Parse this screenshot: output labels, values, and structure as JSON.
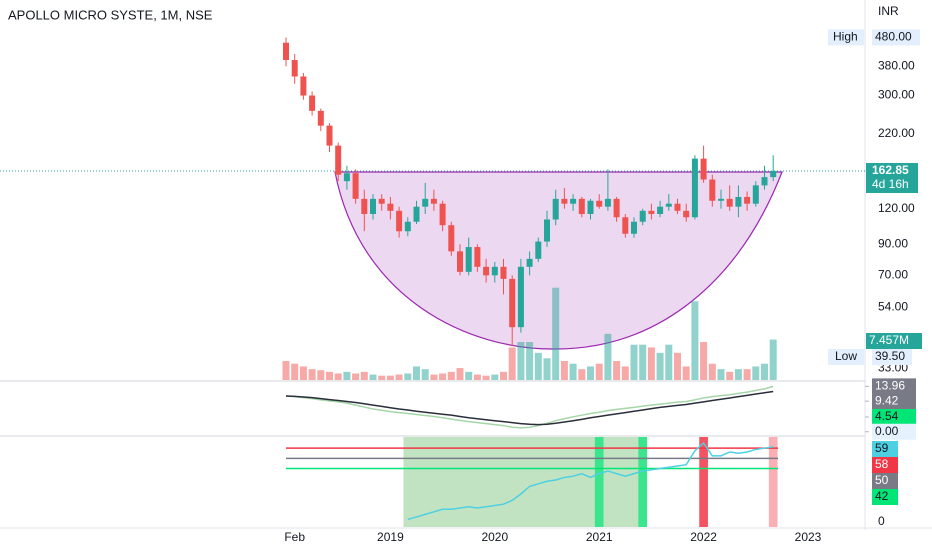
{
  "chart_data": {
    "type": "candlestick",
    "title": "APOLLO MICRO SYSTE, 1M, NSE",
    "currency": "INR",
    "x": [
      "2018-01",
      "2018-02",
      "2018-03",
      "2018-04",
      "2018-05",
      "2018-06",
      "2018-07",
      "2018-08",
      "2018-09",
      "2018-10",
      "2018-11",
      "2018-12",
      "2019-01",
      "2019-02",
      "2019-03",
      "2019-04",
      "2019-05",
      "2019-06",
      "2019-07",
      "2019-08",
      "2019-09",
      "2019-10",
      "2019-11",
      "2019-12",
      "2020-01",
      "2020-02",
      "2020-03",
      "2020-04",
      "2020-05",
      "2020-06",
      "2020-07",
      "2020-08",
      "2020-09",
      "2020-10",
      "2020-11",
      "2020-12",
      "2021-01",
      "2021-02",
      "2021-03",
      "2021-04",
      "2021-05",
      "2021-06",
      "2021-07",
      "2021-08",
      "2021-09",
      "2021-10",
      "2021-11",
      "2021-12",
      "2022-01",
      "2022-02",
      "2022-03",
      "2022-04",
      "2022-05",
      "2022-06",
      "2022-07",
      "2022-08",
      "2022-09"
    ],
    "xticks": [
      {
        "value": "2018-02",
        "label": "Feb"
      },
      {
        "value": "2019-01",
        "label": "2019"
      },
      {
        "value": "2020-01",
        "label": "2020"
      },
      {
        "value": "2021-01",
        "label": "2021"
      },
      {
        "value": "2022-01",
        "label": "2022"
      },
      {
        "value": "2023-01",
        "label": "2023"
      }
    ],
    "ohlc": [
      [
        460,
        480,
        380,
        400
      ],
      [
        400,
        420,
        330,
        350
      ],
      [
        350,
        360,
        290,
        300
      ],
      [
        300,
        310,
        255,
        265
      ],
      [
        265,
        270,
        225,
        235
      ],
      [
        235,
        240,
        190,
        200
      ],
      [
        200,
        205,
        150,
        158
      ],
      [
        150,
        170,
        140,
        160
      ],
      [
        160,
        165,
        125,
        130
      ],
      [
        130,
        140,
        100,
        115
      ],
      [
        115,
        135,
        110,
        130
      ],
      [
        130,
        135,
        118,
        125
      ],
      [
        125,
        132,
        110,
        118
      ],
      [
        118,
        122,
        95,
        100
      ],
      [
        100,
        112,
        96,
        108
      ],
      [
        108,
        128,
        106,
        122
      ],
      [
        122,
        148,
        115,
        130
      ],
      [
        130,
        140,
        118,
        125
      ],
      [
        125,
        128,
        100,
        105
      ],
      [
        105,
        108,
        82,
        85
      ],
      [
        85,
        90,
        70,
        72
      ],
      [
        72,
        95,
        70,
        88
      ],
      [
        88,
        90,
        72,
        75
      ],
      [
        75,
        80,
        66,
        70
      ],
      [
        70,
        78,
        66,
        75
      ],
      [
        75,
        80,
        60,
        68
      ],
      [
        68,
        70,
        39.5,
        46
      ],
      [
        46,
        80,
        44,
        75
      ],
      [
        75,
        85,
        70,
        80
      ],
      [
        80,
        95,
        78,
        92
      ],
      [
        92,
        118,
        88,
        110
      ],
      [
        110,
        140,
        105,
        130
      ],
      [
        130,
        142,
        120,
        125
      ],
      [
        125,
        135,
        118,
        130
      ],
      [
        130,
        132,
        112,
        115
      ],
      [
        115,
        130,
        110,
        128
      ],
      [
        128,
        135,
        120,
        122
      ],
      [
        122,
        165,
        118,
        130
      ],
      [
        130,
        132,
        108,
        112
      ],
      [
        112,
        115,
        95,
        98
      ],
      [
        98,
        112,
        95,
        108
      ],
      [
        108,
        120,
        105,
        118
      ],
      [
        118,
        125,
        110,
        115
      ],
      [
        115,
        128,
        112,
        122
      ],
      [
        122,
        135,
        118,
        125
      ],
      [
        125,
        130,
        115,
        118
      ],
      [
        118,
        125,
        108,
        112
      ],
      [
        112,
        185,
        110,
        180
      ],
      [
        180,
        200,
        148,
        152
      ],
      [
        152,
        158,
        122,
        128
      ],
      [
        128,
        140,
        120,
        130
      ],
      [
        130,
        145,
        118,
        122
      ],
      [
        122,
        145,
        112,
        132
      ],
      [
        132,
        138,
        118,
        125
      ],
      [
        125,
        150,
        122,
        145
      ],
      [
        145,
        170,
        140,
        155
      ],
      [
        155,
        185,
        150,
        162.85
      ]
    ],
    "log_scale": true,
    "ylim": [
      30,
      650
    ],
    "yticks": [
      {
        "value": 380,
        "label": "380.00"
      },
      {
        "value": 300,
        "label": "300.00"
      },
      {
        "value": 220,
        "label": "220.00"
      },
      {
        "value": 120,
        "label": "120.00"
      },
      {
        "value": 90,
        "label": "90.00"
      },
      {
        "value": 70,
        "label": "70.00"
      },
      {
        "value": 54,
        "label": "54.00"
      },
      {
        "value": 33,
        "label": "33.00"
      }
    ],
    "up_color": "#26a69a",
    "down_color": "#ef5350",
    "high": {
      "label": "High",
      "value": 480,
      "value_label": "480.00"
    },
    "low": {
      "label": "Low",
      "value": 39.5,
      "value_label": "39.50"
    },
    "last": {
      "value": 162.85,
      "countdown": "4d 16h"
    },
    "volume": {
      "values": [
        3.5,
        3,
        2.5,
        2,
        1.8,
        1.5,
        1.2,
        1.5,
        1.2,
        1.5,
        1,
        0.8,
        0.8,
        1,
        1.2,
        2.5,
        2,
        1,
        1.2,
        1.5,
        2.2,
        1.5,
        1,
        0.8,
        1,
        1.5,
        6,
        7,
        7,
        5,
        4,
        17,
        3.5,
        3,
        2,
        2.5,
        3,
        8.5,
        3.5,
        2.5,
        6.5,
        6.5,
        6,
        5,
        6.5,
        5,
        2.5,
        14.5,
        7,
        3,
        2,
        1.5,
        2,
        2,
        2.5,
        3,
        7.457
      ],
      "ylim": [
        0,
        70
      ],
      "last_label": "7.457M"
    },
    "oscillator": {
      "lines": [
        {
          "color": "#a5d6a7",
          "values": [
            11,
            10.8,
            10.5,
            10.2,
            9.8,
            9.5,
            9.2,
            8.8,
            8.2,
            7.6,
            7,
            6.6,
            6.2,
            5.9,
            5.6,
            5.3,
            5,
            4.7,
            4.3,
            3.9,
            3.5,
            3.1,
            2.8,
            2.5,
            2.2,
            1.9,
            1.4,
            1.2,
            1.4,
            1.9,
            2.6,
            3.4,
            4,
            4.6,
            5.1,
            5.6,
            6,
            6.5,
            6.9,
            7.2,
            7.5,
            7.9,
            8.2,
            8.5,
            8.8,
            9.1,
            9.3,
            9.8,
            10.4,
            10.8,
            11.1,
            11.4,
            11.8,
            12.2,
            12.7,
            13.2,
            13.96
          ]
        },
        {
          "color": "#2a2e39",
          "values": [
            11,
            10.9,
            10.7,
            10.5,
            10.2,
            9.9,
            9.6,
            9.3,
            9,
            8.6,
            8.2,
            7.8,
            7.4,
            7,
            6.7,
            6.3,
            6,
            5.7,
            5.4,
            5.1,
            4.7,
            4.3,
            4,
            3.7,
            3.4,
            3.1,
            2.8,
            2.5,
            2.3,
            2.2,
            2.3,
            2.6,
            3,
            3.4,
            3.8,
            4.3,
            4.7,
            5.1,
            5.5,
            5.9,
            6.3,
            6.7,
            7.1,
            7.5,
            7.8,
            8.1,
            8.4,
            8.8,
            9.2,
            9.6,
            10,
            10.4,
            10.8,
            11.2,
            11.6,
            12,
            12.4
          ]
        }
      ],
      "ylim": [
        -1,
        15
      ],
      "yticks": [
        {
          "value": 13.96,
          "label": "13.96",
          "color": "#787b86"
        },
        {
          "value": 9.42,
          "label": "9.42",
          "color": "#787b86"
        },
        {
          "value": 4.54,
          "label": "4.54",
          "color": "#00e676"
        },
        {
          "value": 0,
          "label": "0.00",
          "color": "#e3f2fd"
        }
      ]
    },
    "rsi": {
      "color": "#4dd0e1",
      "values": [
        null,
        null,
        null,
        null,
        null,
        null,
        null,
        null,
        null,
        null,
        null,
        null,
        null,
        null,
        2,
        4,
        6,
        8,
        10,
        10,
        11,
        12,
        11,
        12,
        13,
        14,
        17,
        22,
        28,
        30,
        32,
        33,
        35,
        36,
        38,
        35,
        38,
        40,
        38,
        36,
        38,
        40,
        41,
        42,
        43,
        44,
        45,
        56,
        62,
        52,
        52,
        55,
        54,
        55,
        57,
        58,
        59
      ],
      "ylim": [
        0,
        66
      ],
      "yticks": [
        0
      ],
      "levels": [
        {
          "value": 58,
          "color": "#f23645"
        },
        {
          "value": 50,
          "color": "#787b86"
        },
        {
          "value": 42,
          "color": "#00e676"
        }
      ],
      "zones": [
        {
          "from": "2019-03",
          "to": "2021-06",
          "color": "#4caf50",
          "opacity": 0.35
        },
        {
          "from": "2021-01",
          "to": "2021-01",
          "color": "#00e676",
          "opacity": 0.7
        },
        {
          "from": "2021-06",
          "to": "2021-06",
          "color": "#00e676",
          "opacity": 0.7
        },
        {
          "from": "2022-01",
          "to": "2022-01",
          "color": "#f23645",
          "opacity": 0.85
        },
        {
          "from": "2022-09",
          "to": "2022-09",
          "color": "#f23645",
          "opacity": 0.4
        }
      ]
    }
  }
}
